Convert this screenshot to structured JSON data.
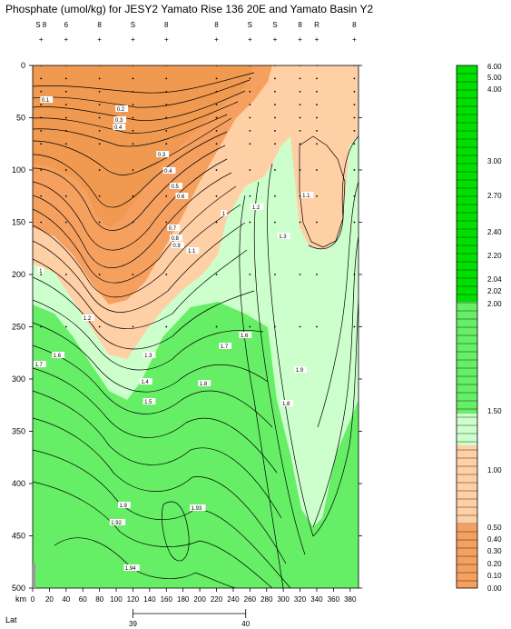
{
  "chart_data": {
    "type": "contour",
    "title": "Phosphate (umol/kg) for JESY2 Yamato Rise 136 20E and Yamato Basin Y2",
    "xlabel": "km",
    "x_secondary_label": "Lat",
    "xlim": [
      0,
      390
    ],
    "ylim": [
      500,
      0
    ],
    "x_ticks": [
      0,
      20,
      40,
      60,
      80,
      100,
      120,
      140,
      160,
      180,
      200,
      220,
      240,
      260,
      280,
      300,
      320,
      340,
      360,
      380
    ],
    "y_ticks": [
      0,
      50,
      100,
      150,
      200,
      250,
      300,
      350,
      400,
      450,
      500
    ],
    "lat_ticks": [
      {
        "km": 120,
        "label": "39"
      },
      {
        "km": 255,
        "label": "40"
      }
    ],
    "station_km": [
      10,
      40,
      80,
      120,
      160,
      220,
      260,
      290,
      320,
      340,
      385
    ],
    "station_labels": [
      "S 8",
      "6",
      "8",
      "S",
      "8",
      "8",
      "S",
      "S",
      "8",
      "R",
      "8"
    ],
    "contour_labels": [
      {
        "text": "0.1",
        "km": 8,
        "depth": 112
      },
      {
        "text": "0.2",
        "km": 98,
        "depth": 122
      },
      {
        "text": "0.3",
        "km": 96,
        "depth": 134
      },
      {
        "text": "0.4",
        "km": 95,
        "depth": 142
      },
      {
        "text": "0.3",
        "km": 147,
        "depth": 172
      },
      {
        "text": "0.4",
        "km": 155,
        "depth": 190
      },
      {
        "text": "0.5",
        "km": 163,
        "depth": 207
      },
      {
        "text": "0.6",
        "km": 170,
        "depth": 218
      },
      {
        "text": "1.1",
        "km": 320,
        "depth": 217
      },
      {
        "text": "1",
        "km": 224,
        "depth": 237
      },
      {
        "text": "1.2",
        "km": 260,
        "depth": 230
      },
      {
        "text": "0.7",
        "km": 160,
        "depth": 253
      },
      {
        "text": "0.8",
        "km": 163,
        "depth": 264
      },
      {
        "text": "0.9",
        "km": 165,
        "depth": 272
      },
      {
        "text": "1.3",
        "km": 292,
        "depth": 262
      },
      {
        "text": "1.1",
        "km": 183,
        "depth": 278
      },
      {
        "text": "1",
        "km": 5,
        "depth": 300
      },
      {
        "text": "1.2",
        "km": 58,
        "depth": 352
      },
      {
        "text": "1.7",
        "km": 222,
        "depth": 383
      },
      {
        "text": "1.6",
        "km": 246,
        "depth": 371
      },
      {
        "text": "1.7",
        "km": 0,
        "depth": 403
      },
      {
        "text": "1.6",
        "km": 22,
        "depth": 393
      },
      {
        "text": "1.3",
        "km": 131,
        "depth": 393
      },
      {
        "text": "1.4",
        "km": 127,
        "depth": 422
      },
      {
        "text": "1.8",
        "km": 197,
        "depth": 424
      },
      {
        "text": "1.5",
        "km": 131,
        "depth": 444
      },
      {
        "text": "1.9",
        "km": 312,
        "depth": 409
      },
      {
        "text": "1.8",
        "km": 296,
        "depth": 446
      },
      {
        "text": "1.9",
        "km": 101,
        "depth": 558
      },
      {
        "text": "1.92",
        "km": 91,
        "depth": 577
      },
      {
        "text": "1.93",
        "km": 187,
        "depth": 561
      },
      {
        "text": "1.94",
        "km": 108,
        "depth": 627
      }
    ],
    "colorbar": {
      "levels": [
        "6.00",
        "5.00",
        "4.00",
        "3.00",
        "2.70",
        "2.40",
        "2.20",
        "2.04",
        "2.02",
        "2.00",
        "1.50",
        "1.00",
        "0.50",
        "0.40",
        "0.30",
        "0.20",
        "0.10",
        "0.00"
      ],
      "colors": {
        "high": "#00e000",
        "mid": "#66ee66",
        "low": "#ccffcc",
        "pale_orange": "#ffcfa6",
        "orange": "#f6a060",
        "dark_orange": "#f09950"
      }
    }
  }
}
